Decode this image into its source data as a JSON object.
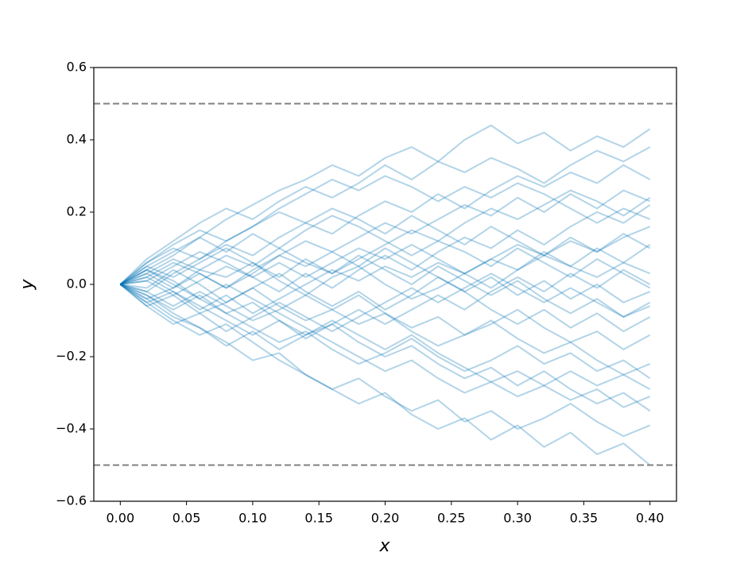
{
  "chart_data": {
    "type": "line",
    "x_label": "x",
    "y_label": "y",
    "color": "#0072b2",
    "alpha": 0.3,
    "x": [
      0,
      0.02,
      0.04,
      0.06,
      0.08,
      0.1,
      0.12,
      0.14,
      0.16,
      0.18,
      0.2,
      0.22,
      0.24,
      0.26,
      0.28,
      0.3,
      0.32,
      0.34,
      0.36,
      0.38,
      0.4
    ],
    "series": [
      {
        "values": [
          0,
          0.05,
          0.09,
          0.13,
          0.18,
          0.22,
          0.26,
          0.29,
          0.33,
          0.3,
          0.35,
          0.38,
          0.34,
          0.4,
          0.44,
          0.39,
          0.42,
          0.37,
          0.41,
          0.38,
          0.43
        ]
      },
      {
        "values": [
          0,
          -0.04,
          -0.09,
          -0.12,
          -0.16,
          -0.21,
          -0.19,
          -0.25,
          -0.29,
          -0.33,
          -0.3,
          -0.36,
          -0.4,
          -0.37,
          -0.43,
          -0.39,
          -0.45,
          -0.41,
          -0.47,
          -0.44,
          -0.5
        ]
      },
      {
        "values": [
          0,
          0.03,
          -0.01,
          0.04,
          0.02,
          0.06,
          0.01,
          -0.03,
          0.02,
          0.05,
          0.0,
          -0.04,
          -0.01,
          0.03,
          0.07,
          0.04,
          0.09,
          0.05,
          0.02,
          0.06,
          0.03
        ]
      },
      {
        "values": [
          0,
          -0.02,
          0.03,
          0.07,
          0.11,
          0.08,
          0.13,
          0.17,
          0.14,
          0.19,
          0.23,
          0.2,
          0.25,
          0.21,
          0.26,
          0.3,
          0.27,
          0.31,
          0.28,
          0.33,
          0.29
        ]
      },
      {
        "values": [
          0,
          0.04,
          0.01,
          -0.04,
          -0.08,
          -0.05,
          -0.1,
          -0.14,
          -0.11,
          -0.16,
          -0.2,
          -0.17,
          -0.22,
          -0.26,
          -0.23,
          -0.28,
          -0.24,
          -0.29,
          -0.33,
          -0.3,
          -0.35
        ]
      },
      {
        "values": [
          0,
          0.06,
          0.1,
          0.07,
          0.12,
          0.16,
          0.2,
          0.17,
          0.21,
          0.18,
          0.14,
          0.19,
          0.15,
          0.11,
          0.16,
          0.12,
          0.08,
          0.13,
          0.09,
          0.14,
          0.1
        ]
      },
      {
        "values": [
          0,
          -0.06,
          -0.03,
          -0.08,
          -0.05,
          -0.01,
          -0.06,
          -0.1,
          -0.07,
          -0.03,
          -0.08,
          -0.12,
          -0.09,
          -0.14,
          -0.11,
          -0.07,
          -0.12,
          -0.16,
          -0.13,
          -0.18,
          -0.14
        ]
      },
      {
        "values": [
          0,
          0.02,
          0.06,
          0.03,
          -0.01,
          0.03,
          0.08,
          0.12,
          0.09,
          0.05,
          0.1,
          0.06,
          0.02,
          -0.02,
          0.02,
          -0.03,
          0.01,
          -0.04,
          0.0,
          -0.05,
          -0.02
        ]
      },
      {
        "values": [
          0,
          -0.03,
          -0.07,
          -0.03,
          -0.08,
          -0.12,
          -0.16,
          -0.13,
          -0.18,
          -0.22,
          -0.19,
          -0.15,
          -0.2,
          -0.24,
          -0.21,
          -0.17,
          -0.22,
          -0.19,
          -0.24,
          -0.21,
          -0.26
        ]
      },
      {
        "values": [
          0,
          0.07,
          0.12,
          0.17,
          0.21,
          0.18,
          0.23,
          0.27,
          0.24,
          0.28,
          0.33,
          0.29,
          0.34,
          0.31,
          0.35,
          0.32,
          0.28,
          0.33,
          0.37,
          0.34,
          0.38
        ]
      },
      {
        "values": [
          0,
          -0.05,
          -0.1,
          -0.14,
          -0.11,
          -0.16,
          -0.21,
          -0.25,
          -0.29,
          -0.26,
          -0.31,
          -0.35,
          -0.32,
          -0.38,
          -0.35,
          -0.4,
          -0.37,
          -0.33,
          -0.38,
          -0.42,
          -0.39
        ]
      },
      {
        "values": [
          0,
          0.01,
          -0.03,
          0.01,
          0.05,
          0.02,
          -0.02,
          0.03,
          -0.01,
          0.04,
          0.08,
          0.04,
          0.09,
          0.13,
          0.1,
          0.15,
          0.11,
          0.16,
          0.2,
          0.17,
          0.22
        ]
      },
      {
        "values": [
          0,
          -0.01,
          0.04,
          0.0,
          -0.05,
          -0.01,
          0.03,
          -0.02,
          -0.06,
          -0.02,
          -0.07,
          -0.03,
          0.02,
          -0.02,
          -0.07,
          -0.11,
          -0.07,
          -0.12,
          -0.08,
          -0.13,
          -0.09
        ]
      },
      {
        "values": [
          0,
          0.05,
          0.02,
          0.06,
          0.1,
          0.06,
          0.02,
          0.07,
          0.03,
          0.08,
          0.04,
          0.0,
          0.05,
          0.01,
          -0.03,
          0.01,
          -0.04,
          -0.08,
          -0.04,
          -0.09,
          -0.05
        ]
      },
      {
        "values": [
          0,
          -0.04,
          -0.01,
          0.03,
          -0.01,
          0.04,
          0.08,
          0.05,
          0.09,
          0.13,
          0.17,
          0.14,
          0.18,
          0.22,
          0.19,
          0.24,
          0.2,
          0.25,
          0.21,
          0.26,
          0.23
        ]
      },
      {
        "values": [
          0,
          0.03,
          0.07,
          0.04,
          0.08,
          0.05,
          0.1,
          0.06,
          0.03,
          0.07,
          0.11,
          0.15,
          0.12,
          0.17,
          0.21,
          0.18,
          0.22,
          0.26,
          0.23,
          0.19,
          0.24
        ]
      },
      {
        "values": [
          0,
          -0.02,
          -0.06,
          -0.02,
          -0.06,
          -0.1,
          -0.07,
          -0.03,
          -0.07,
          -0.11,
          -0.08,
          -0.13,
          -0.17,
          -0.14,
          -0.1,
          -0.15,
          -0.19,
          -0.16,
          -0.21,
          -0.25,
          -0.22
        ]
      },
      {
        "values": [
          0,
          0.04,
          0.08,
          0.13,
          0.09,
          0.14,
          0.1,
          0.15,
          0.19,
          0.16,
          0.12,
          0.08,
          0.12,
          0.09,
          0.05,
          0.1,
          0.06,
          0.02,
          0.07,
          0.03,
          -0.01
        ]
      },
      {
        "values": [
          0,
          -0.05,
          -0.02,
          -0.07,
          -0.03,
          -0.08,
          -0.04,
          0.0,
          0.04,
          0.01,
          0.05,
          0.02,
          0.06,
          0.03,
          -0.01,
          0.04,
          0.08,
          0.05,
          0.1,
          0.06,
          0.11
        ]
      },
      {
        "values": [
          0,
          0.02,
          -0.02,
          -0.06,
          -0.1,
          -0.14,
          -0.1,
          -0.15,
          -0.11,
          -0.07,
          -0.11,
          -0.07,
          -0.03,
          -0.07,
          -0.02,
          0.02,
          -0.02,
          0.03,
          -0.01,
          0.04,
          0.0
        ]
      },
      {
        "values": [
          0,
          0.06,
          0.11,
          0.15,
          0.12,
          0.16,
          0.21,
          0.25,
          0.29,
          0.26,
          0.3,
          0.27,
          0.23,
          0.27,
          0.24,
          0.28,
          0.25,
          0.21,
          0.17,
          0.21,
          0.18
        ]
      },
      {
        "values": [
          0,
          -0.03,
          -0.08,
          -0.12,
          -0.17,
          -0.13,
          -0.18,
          -0.14,
          -0.1,
          -0.14,
          -0.18,
          -0.14,
          -0.19,
          -0.23,
          -0.27,
          -0.24,
          -0.28,
          -0.32,
          -0.29,
          -0.34,
          -0.31
        ]
      },
      {
        "values": [
          0,
          0.01,
          0.05,
          0.09,
          0.06,
          0.02,
          0.06,
          0.02,
          0.06,
          0.1,
          0.07,
          0.11,
          0.07,
          0.03,
          0.07,
          0.11,
          0.08,
          0.12,
          0.09,
          0.13,
          0.16
        ]
      },
      {
        "values": [
          0,
          -0.06,
          -0.11,
          -0.08,
          -0.13,
          -0.09,
          -0.05,
          -0.09,
          -0.13,
          -0.09,
          -0.05,
          -0.01,
          -0.05,
          -0.01,
          0.03,
          -0.01,
          -0.05,
          -0.01,
          -0.05,
          -0.09,
          -0.06
        ]
      },
      {
        "values": [
          0,
          0.04,
          0.0,
          -0.04,
          0.0,
          -0.04,
          -0.08,
          -0.12,
          -0.16,
          -0.2,
          -0.24,
          -0.21,
          -0.26,
          -0.3,
          -0.27,
          -0.31,
          -0.28,
          -0.24,
          -0.28,
          -0.25,
          -0.29
        ]
      }
    ],
    "hlines": [
      0.5,
      -0.5
    ],
    "hline_color": "#808080",
    "hline_style": "dashed",
    "xlim": [
      -0.02,
      0.42
    ],
    "ylim": [
      -0.6,
      0.6
    ],
    "xticks": [
      {
        "value": 0,
        "label": "0.00"
      },
      {
        "value": 0.05,
        "label": "0.05"
      },
      {
        "value": 0.1,
        "label": "0.10"
      },
      {
        "value": 0.15,
        "label": "0.15"
      },
      {
        "value": 0.2,
        "label": "0.20"
      },
      {
        "value": 0.25,
        "label": "0.25"
      },
      {
        "value": 0.3,
        "label": "0.30"
      },
      {
        "value": 0.35,
        "label": "0.35"
      },
      {
        "value": 0.4,
        "label": "0.40"
      }
    ],
    "yticks": [
      {
        "value": -0.6,
        "label": "−0.6"
      },
      {
        "value": -0.4,
        "label": "−0.4"
      },
      {
        "value": -0.2,
        "label": "−0.2"
      },
      {
        "value": 0,
        "label": "0.0"
      },
      0.2,
      0.4,
      0.6
    ],
    "grid": false
  }
}
